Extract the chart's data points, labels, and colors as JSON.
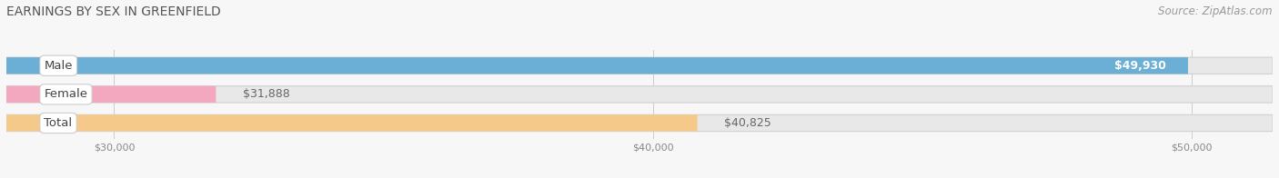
{
  "title": "EARNINGS BY SEX IN GREENFIELD",
  "source": "Source: ZipAtlas.com",
  "categories": [
    "Male",
    "Female",
    "Total"
  ],
  "values": [
    49930,
    31888,
    40825
  ],
  "bar_colors": [
    "#6baed6",
    "#f4a8c0",
    "#f5c98a"
  ],
  "value_labels": [
    "$49,930",
    "$31,888",
    "$40,825"
  ],
  "value_inside": [
    true,
    false,
    false
  ],
  "x_min": 28000,
  "x_max": 51500,
  "x_ticks": [
    30000,
    40000,
    50000
  ],
  "x_tick_labels": [
    "$30,000",
    "$40,000",
    "$50,000"
  ],
  "bg_color": "#f7f7f7",
  "bar_bg_color": "#e8e8e8",
  "bar_bg_edge_color": "#d0d0d0",
  "title_color": "#555555",
  "source_color": "#999999",
  "bar_height": 0.58,
  "bar_gap": 0.42,
  "title_fontsize": 10,
  "label_fontsize": 9.5,
  "value_fontsize": 9,
  "source_fontsize": 8.5,
  "tick_fontsize": 8
}
